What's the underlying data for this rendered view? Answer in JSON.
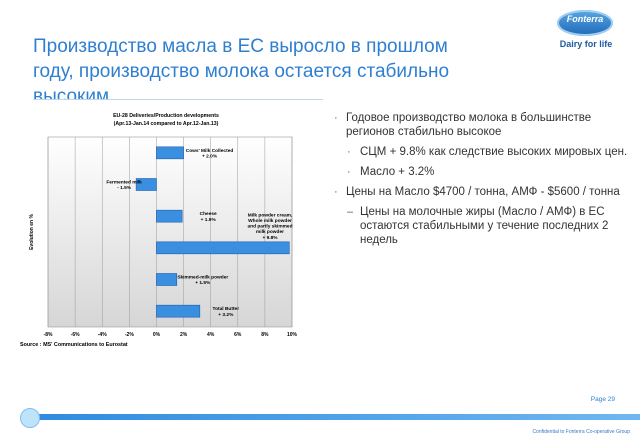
{
  "slide": {
    "title_line1": "Производство масла в ЕС выросло в прошлом",
    "title_line2": "году, производство молока остается стабильно",
    "title_line3": "высоким",
    "page": "Page 29",
    "confidential": "Confidential to Fonterra Co-operative Group",
    "accent_color": "#2f7fd1"
  },
  "logo": {
    "name": "Fonterra",
    "tagline": "Dairy for life"
  },
  "bullets": [
    {
      "level": 1,
      "marker": "·",
      "text": "Годовое производство молока в большинстве регионов стабильно высокое"
    },
    {
      "level": 2,
      "marker": "·",
      "text": "СЦМ + 9.8% как следствие высоких мировых цен."
    },
    {
      "level": 2,
      "marker": "·",
      "text": "Масло + 3.2%"
    },
    {
      "level": 1,
      "marker": "·",
      "text": "Цены на Масло  $4700 / тонна, АМФ - $5600 / тонна"
    },
    {
      "level": 2,
      "marker": "–",
      "text": "Цены на молочные жиры (Масло / АМФ) в ЕС остаются стабильными у течение последних 2 недель"
    }
  ],
  "chart_data": {
    "type": "bar",
    "orientation": "horizontal",
    "title": "EU-28 Deliveries/Production developments",
    "subtitle": "(Apr.13-Jan.14 compared to Apr.12-Jan.13)",
    "ylabel": "Evolution en %",
    "source": "Source : MS' Communications to Eurostat",
    "xlim": [
      -8,
      10
    ],
    "xticks": [
      "-8%",
      "-6%",
      "-4%",
      "-2%",
      "0%",
      "2%",
      "4%",
      "6%",
      "8%",
      "10%"
    ],
    "grid": true,
    "bar_color": "#3a8fe0",
    "bars": [
      {
        "label_lines": [
          "Cows' Milk Collected",
          "+ 2.0%"
        ],
        "value": 2.0
      },
      {
        "label_lines": [
          "Fermented milk",
          "- 1.5%"
        ],
        "value": -1.5
      },
      {
        "label_lines": [
          "Cheese",
          "+ 1.9%"
        ],
        "value": 1.9
      },
      {
        "label_lines": [
          "Milk powder cream,",
          "Whole milk powder",
          "and partly skimmed",
          "milk powder",
          "+ 9.8%"
        ],
        "value": 9.8
      },
      {
        "label_lines": [
          "Skimmed-milk powder",
          "+ 1.5%"
        ],
        "value": 1.5
      },
      {
        "label_lines": [
          "Total Butter",
          "+ 3.2%"
        ],
        "value": 3.2
      }
    ]
  }
}
